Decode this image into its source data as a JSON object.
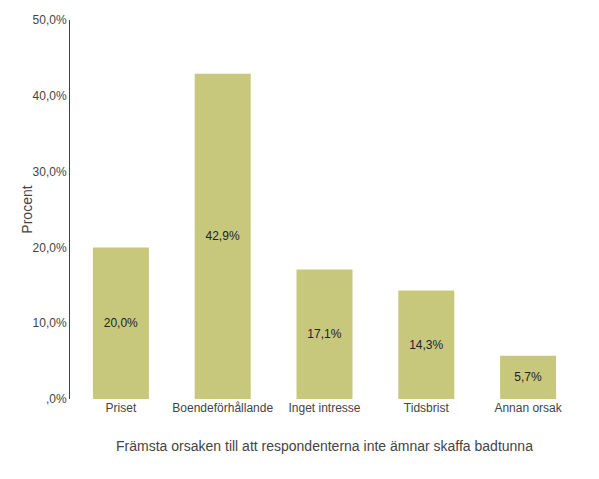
{
  "chart_data": {
    "type": "bar",
    "categories": [
      "Priset",
      "Boendeförhållande",
      "Inget intresse",
      "Tidsbrist",
      "Annan orsak"
    ],
    "values": [
      20.0,
      42.9,
      17.1,
      14.3,
      5.7
    ],
    "value_labels": [
      "20,0%",
      "42,9%",
      "17,1%",
      "14,3%",
      "5,7%"
    ],
    "data_labels": true,
    "color": "#c8c87d",
    "xlabel": "Främsta orsaken till att respondenterna inte ämnar skaffa badtunna",
    "ylabel": "Procent",
    "ylim": [
      0,
      50
    ],
    "yticks": [
      {
        "value": 0,
        "label": ",0%"
      },
      {
        "value": 10,
        "label": "10,0%"
      },
      {
        "value": 20,
        "label": "20,0%"
      },
      {
        "value": 30,
        "label": "30,0%"
      },
      {
        "value": 40,
        "label": "40,0%"
      },
      {
        "value": 50,
        "label": "50,0%"
      }
    ],
    "grid": false
  }
}
